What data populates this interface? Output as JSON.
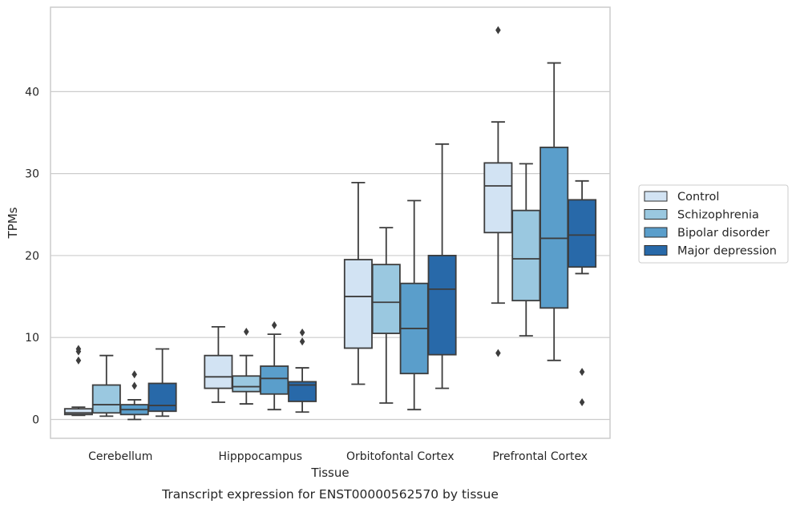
{
  "chart_data": {
    "type": "box",
    "title": "",
    "caption": "Transcript expression for ENST00000562570 by tissue",
    "xlabel": "Tissue",
    "ylabel": "TPMs",
    "ylim": [
      -2.3,
      50.3
    ],
    "yticks": [
      0,
      10,
      20,
      30,
      40
    ],
    "grid": "horizontal",
    "legend_position": "right",
    "categories": [
      "Cerebellum",
      "Hipppocampus",
      "Orbitofontal Cortex",
      "Prefrontal Cortex"
    ],
    "series": [
      {
        "name": "Control",
        "color": "#d2e3f3",
        "boxes": [
          {
            "whislo": 0.5,
            "q1": 0.6,
            "med": 0.8,
            "q3": 1.3,
            "whishi": 1.5,
            "fliers": [
              7.2,
              8.3,
              8.6
            ]
          },
          {
            "whislo": 2.1,
            "q1": 3.8,
            "med": 5.2,
            "q3": 7.8,
            "whishi": 11.3,
            "fliers": []
          },
          {
            "whislo": 4.3,
            "q1": 8.7,
            "med": 15.0,
            "q3": 19.5,
            "whishi": 28.9,
            "fliers": []
          },
          {
            "whislo": 14.2,
            "q1": 22.8,
            "med": 28.5,
            "q3": 31.3,
            "whishi": 36.3,
            "fliers": [
              8.1,
              47.5
            ]
          }
        ]
      },
      {
        "name": "Schizophrenia",
        "color": "#9ac8e0",
        "boxes": [
          {
            "whislo": 0.4,
            "q1": 0.8,
            "med": 1.8,
            "q3": 4.2,
            "whishi": 7.8,
            "fliers": []
          },
          {
            "whislo": 1.9,
            "q1": 3.4,
            "med": 4.0,
            "q3": 5.3,
            "whishi": 7.8,
            "fliers": [
              10.7
            ]
          },
          {
            "whislo": 2.0,
            "q1": 10.5,
            "med": 14.3,
            "q3": 18.9,
            "whishi": 23.4,
            "fliers": []
          },
          {
            "whislo": 10.2,
            "q1": 14.5,
            "med": 19.6,
            "q3": 25.5,
            "whishi": 31.2,
            "fliers": []
          }
        ]
      },
      {
        "name": "Bipolar disorder",
        "color": "#5a9ecb",
        "boxes": [
          {
            "whislo": 0.0,
            "q1": 0.6,
            "med": 1.2,
            "q3": 1.8,
            "whishi": 2.4,
            "fliers": [
              4.1,
              5.5
            ]
          },
          {
            "whislo": 1.2,
            "q1": 3.1,
            "med": 5.0,
            "q3": 6.5,
            "whishi": 10.4,
            "fliers": [
              11.5
            ]
          },
          {
            "whislo": 1.2,
            "q1": 5.6,
            "med": 11.1,
            "q3": 16.6,
            "whishi": 26.7,
            "fliers": []
          },
          {
            "whislo": 7.2,
            "q1": 13.6,
            "med": 22.1,
            "q3": 33.2,
            "whishi": 43.5,
            "fliers": []
          }
        ]
      },
      {
        "name": "Major depression",
        "color": "#2869a9",
        "boxes": [
          {
            "whislo": 0.4,
            "q1": 1.0,
            "med": 1.7,
            "q3": 4.4,
            "whishi": 8.6,
            "fliers": []
          },
          {
            "whislo": 0.9,
            "q1": 2.2,
            "med": 4.2,
            "q3": 4.6,
            "whishi": 6.3,
            "fliers": [
              9.5,
              10.6
            ]
          },
          {
            "whislo": 3.8,
            "q1": 7.9,
            "med": 15.9,
            "q3": 20.0,
            "whishi": 33.6,
            "fliers": []
          },
          {
            "whislo": 17.8,
            "q1": 18.6,
            "med": 22.5,
            "q3": 26.8,
            "whishi": 29.1,
            "fliers": [
              2.1,
              5.8
            ]
          }
        ]
      }
    ]
  }
}
